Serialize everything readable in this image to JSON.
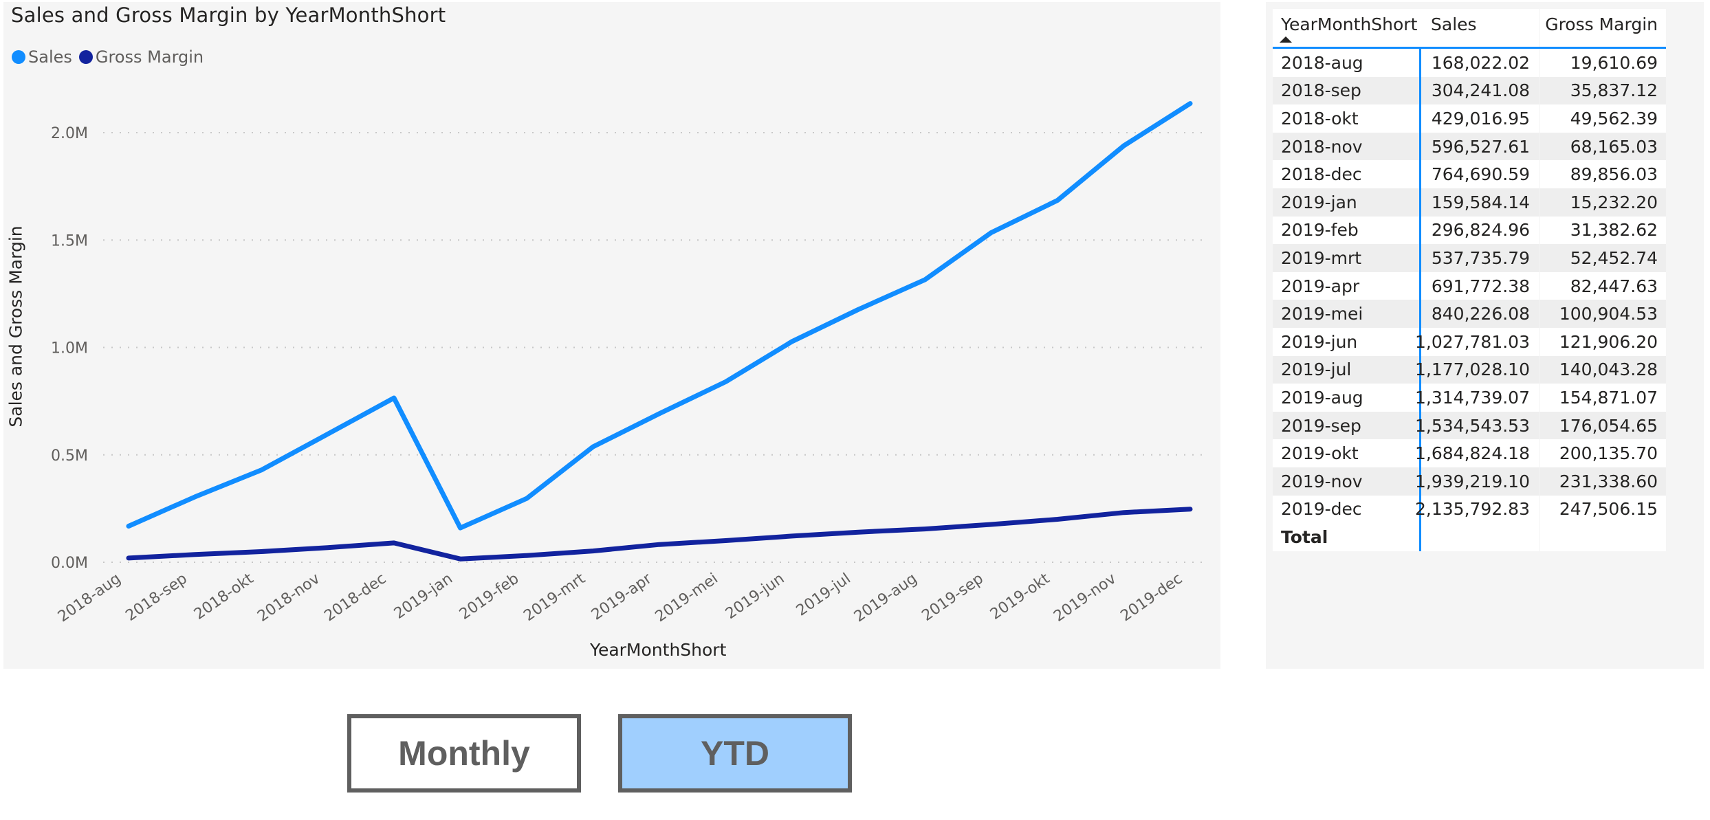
{
  "chart": {
    "title": "Sales and Gross Margin by YearMonthShort",
    "legend": [
      {
        "label": "Sales",
        "color": "#118dff"
      },
      {
        "label": "Gross Margin",
        "color": "#12239e"
      }
    ],
    "y_axis_title": "Sales and Gross Margin",
    "x_axis_title": "YearMonthShort",
    "y_ticks": [
      "0.0M",
      "0.5M",
      "1.0M",
      "1.5M",
      "2.0M"
    ]
  },
  "chart_data": {
    "type": "line",
    "title": "Sales and Gross Margin by YearMonthShort",
    "xlabel": "YearMonthShort",
    "ylabel": "Sales and Gross Margin",
    "ylim": [
      0,
      2000000
    ],
    "y_tick_values": [
      0,
      500000,
      1000000,
      1500000,
      2000000
    ],
    "y_tick_labels": [
      "0.0M",
      "0.5M",
      "1.0M",
      "1.5M",
      "2.0M"
    ],
    "grid": "horizontal dotted",
    "legend_position": "top-left",
    "categories": [
      "2018-aug",
      "2018-sep",
      "2018-okt",
      "2018-nov",
      "2018-dec",
      "2019-jan",
      "2019-feb",
      "2019-mrt",
      "2019-apr",
      "2019-mei",
      "2019-jun",
      "2019-jul",
      "2019-aug",
      "2019-sep",
      "2019-okt",
      "2019-nov",
      "2019-dec"
    ],
    "series": [
      {
        "name": "Sales",
        "color": "#118dff",
        "values": [
          168022.02,
          304241.08,
          429016.95,
          596527.61,
          764690.59,
          159584.14,
          296824.96,
          537735.79,
          691772.38,
          840226.08,
          1027781.03,
          1177028.1,
          1314739.07,
          1534543.53,
          1684824.18,
          1939219.1,
          2135792.83
        ]
      },
      {
        "name": "Gross Margin",
        "color": "#12239e",
        "values": [
          19610.69,
          35837.12,
          49562.39,
          68165.03,
          89856.03,
          15232.2,
          31382.62,
          52452.74,
          82447.63,
          100904.53,
          121906.2,
          140043.28,
          154871.07,
          176054.65,
          200135.7,
          231338.6,
          247506.15
        ]
      }
    ]
  },
  "table": {
    "headers": [
      "YearMonthShort",
      "Sales",
      "Gross Margin"
    ],
    "sort_indicator": "ascending",
    "rows": [
      [
        "2018-aug",
        "168,022.02",
        "19,610.69"
      ],
      [
        "2018-sep",
        "304,241.08",
        "35,837.12"
      ],
      [
        "2018-okt",
        "429,016.95",
        "49,562.39"
      ],
      [
        "2018-nov",
        "596,527.61",
        "68,165.03"
      ],
      [
        "2018-dec",
        "764,690.59",
        "89,856.03"
      ],
      [
        "2019-jan",
        "159,584.14",
        "15,232.20"
      ],
      [
        "2019-feb",
        "296,824.96",
        "31,382.62"
      ],
      [
        "2019-mrt",
        "537,735.79",
        "52,452.74"
      ],
      [
        "2019-apr",
        "691,772.38",
        "82,447.63"
      ],
      [
        "2019-mei",
        "840,226.08",
        "100,904.53"
      ],
      [
        "2019-jun",
        "1,027,781.03",
        "121,906.20"
      ],
      [
        "2019-jul",
        "1,177,028.10",
        "140,043.28"
      ],
      [
        "2019-aug",
        "1,314,739.07",
        "154,871.07"
      ],
      [
        "2019-sep",
        "1,534,543.53",
        "176,054.65"
      ],
      [
        "2019-okt",
        "1,684,824.18",
        "200,135.70"
      ],
      [
        "2019-nov",
        "1,939,219.10",
        "231,338.60"
      ],
      [
        "2019-dec",
        "2,135,792.83",
        "247,506.15"
      ]
    ],
    "total_label": "Total",
    "total_values": [
      "",
      ""
    ]
  },
  "buttons": {
    "monthly": {
      "label": "Monthly",
      "selected": false
    },
    "ytd": {
      "label": "YTD",
      "selected": true
    }
  }
}
